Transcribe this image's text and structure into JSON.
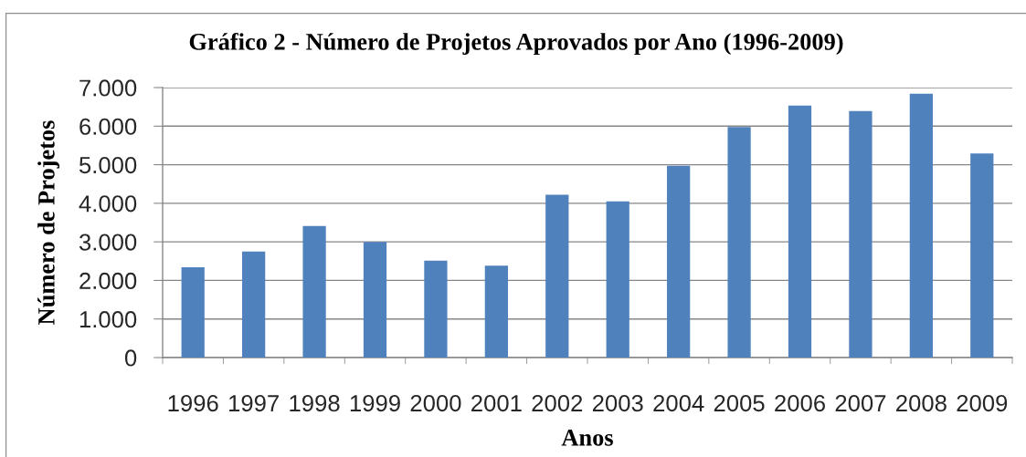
{
  "chart_data": {
    "type": "bar",
    "title": "Gráfico 2 - Número de Projetos Aprovados por Ano (1996-2009)",
    "xlabel": "Anos",
    "ylabel": "Número de Projetos",
    "categories": [
      "1996",
      "1997",
      "1998",
      "1999",
      "2000",
      "2001",
      "2002",
      "2003",
      "2004",
      "2005",
      "2006",
      "2007",
      "2008",
      "2009"
    ],
    "values": [
      2340,
      2750,
      3410,
      3000,
      2510,
      2380,
      4220,
      4050,
      4970,
      5980,
      6530,
      6390,
      6840,
      5290
    ],
    "color": "#4f81bd",
    "ylim": [
      0,
      7000
    ],
    "yticks": [
      0,
      {
        "value": 1000,
        "label": "1.000"
      },
      {
        "value": 2000,
        "label": "2.000"
      },
      {
        "value": 3000,
        "label": "3.000"
      },
      {
        "value": 4000,
        "label": "4.000"
      },
      {
        "value": 5000,
        "label": "5.000"
      },
      {
        "value": 6000,
        "label": "6.000"
      },
      {
        "value": 7000,
        "label": "7.000"
      }
    ],
    "grid": "y"
  }
}
